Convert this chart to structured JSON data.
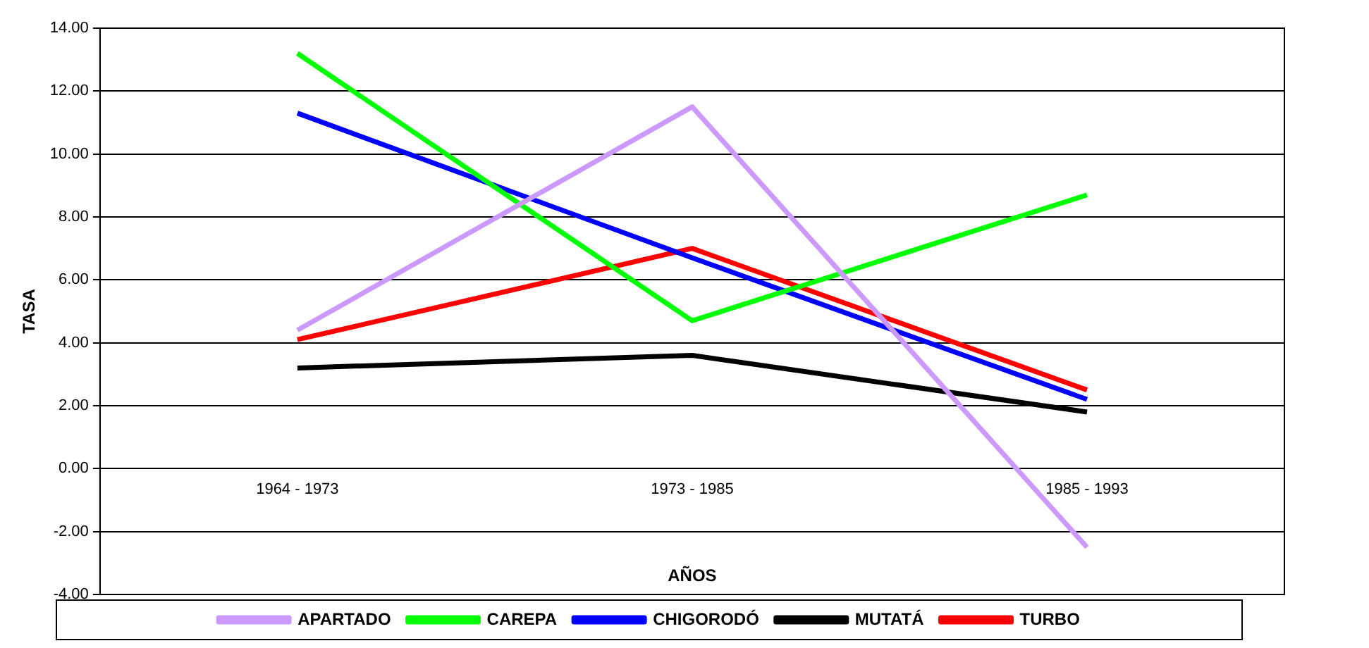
{
  "chart_data": {
    "type": "line",
    "xlabel": "AÑOS",
    "ylabel": "TASA",
    "categories": [
      "1964 - 1973",
      "1973 - 1985",
      "1985 - 1993"
    ],
    "series": [
      {
        "name": "APARTADO",
        "color": "#cc99ff",
        "values": [
          4.4,
          11.5,
          -2.5
        ]
      },
      {
        "name": "CAREPA",
        "color": "#00ff00",
        "values": [
          13.2,
          4.7,
          8.7
        ]
      },
      {
        "name": "CHIGORODÓ",
        "color": "#0000ff",
        "values": [
          11.3,
          6.7,
          2.2
        ]
      },
      {
        "name": "MUTATÁ",
        "color": "#000000",
        "values": [
          3.2,
          3.6,
          1.8
        ]
      },
      {
        "name": "TURBO",
        "color": "#ff0000",
        "values": [
          4.1,
          7.0,
          2.5
        ]
      }
    ],
    "ylim": [
      -4,
      14
    ],
    "yticks": [
      {
        "value": -4,
        "label": "-4.00"
      },
      {
        "value": -2,
        "label": "-2.00"
      },
      {
        "value": 0,
        "label": "0.00"
      },
      {
        "value": 2,
        "label": "2.00"
      },
      {
        "value": 4,
        "label": "4.00"
      },
      {
        "value": 6,
        "label": "6.00"
      },
      {
        "value": 8,
        "label": "8.00"
      },
      {
        "value": 10,
        "label": "10.00"
      },
      {
        "value": 12,
        "label": "12.00"
      },
      {
        "value": 14,
        "label": "14.00"
      }
    ],
    "grid": "y",
    "legend": "bottom",
    "marker": "none",
    "line_style": "solid"
  }
}
